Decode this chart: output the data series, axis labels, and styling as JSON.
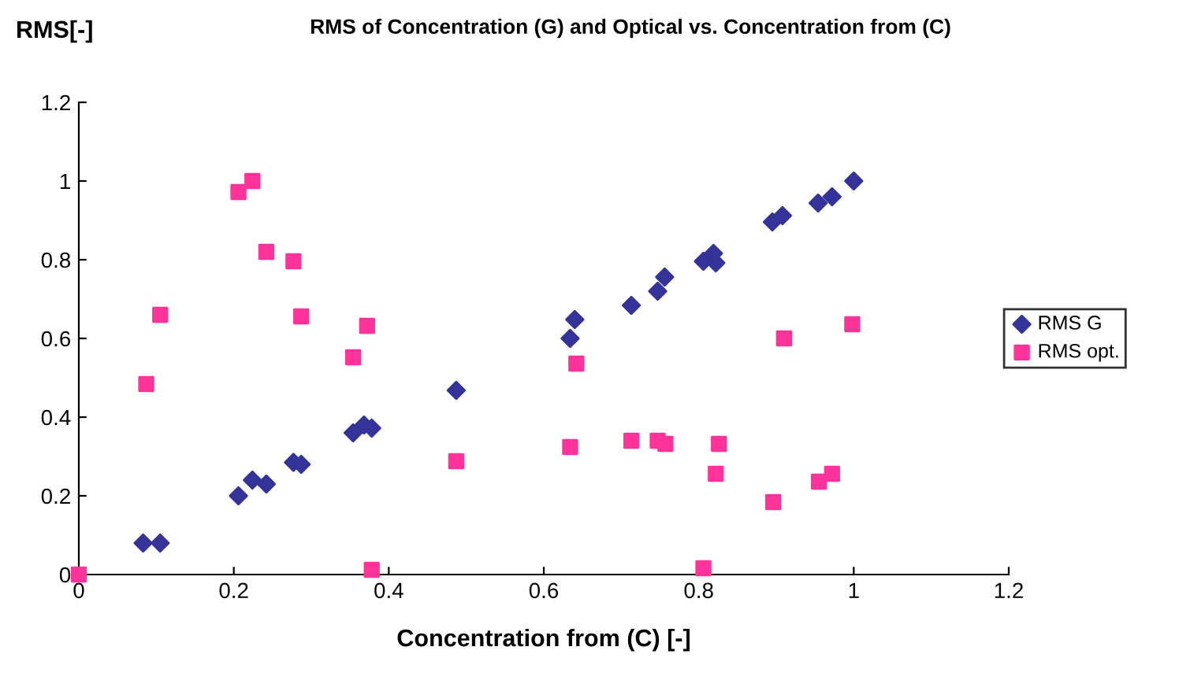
{
  "chart_data": {
    "type": "scatter",
    "title": "RMS of Concentration (G) and Optical vs. Concentration from (C)",
    "xlabel": "Concentration from (C) [-]",
    "ylabel": "RMS[-]",
    "xlim": [
      0,
      1.2
    ],
    "xticks": [
      0,
      0.2,
      0.4,
      0.6,
      0.8,
      1,
      1.2
    ],
    "ylim": [
      0,
      1.2
    ],
    "yticks": [
      0,
      0.2,
      0.4,
      0.6,
      0.8,
      1,
      1.2
    ],
    "grid": false,
    "legend": "right",
    "series": [
      {
        "name": "RMS G",
        "color": "#333399",
        "marker": "diamond",
        "x": [
          0.083,
          0.105,
          0.206,
          0.224,
          0.242,
          0.277,
          0.287,
          0.354,
          0.368,
          0.378,
          0.487,
          0.634,
          0.64,
          0.713,
          0.747,
          0.756,
          0.806,
          0.819,
          0.822,
          0.895,
          0.908,
          0.954,
          0.972,
          1.0
        ],
        "values": [
          0.08,
          0.08,
          0.2,
          0.24,
          0.23,
          0.285,
          0.28,
          0.36,
          0.38,
          0.372,
          0.468,
          0.6,
          0.648,
          0.684,
          0.72,
          0.756,
          0.796,
          0.816,
          0.792,
          0.896,
          0.912,
          0.944,
          0.96,
          1.0
        ]
      },
      {
        "name": "RMS opt.",
        "color": "#ff3399",
        "marker": "square",
        "x": [
          0,
          0.087,
          0.105,
          0.206,
          0.224,
          0.242,
          0.277,
          0.287,
          0.354,
          0.372,
          0.378,
          0.487,
          0.634,
          0.642,
          0.713,
          0.747,
          0.757,
          0.806,
          0.822,
          0.826,
          0.896,
          0.91,
          0.955,
          0.972,
          0.998
        ],
        "values": [
          0,
          0.484,
          0.66,
          0.972,
          1.0,
          0.82,
          0.796,
          0.656,
          0.552,
          0.632,
          0.012,
          0.288,
          0.324,
          0.536,
          0.34,
          0.34,
          0.332,
          0.016,
          0.256,
          0.332,
          0.184,
          0.6,
          0.236,
          0.256,
          0.636
        ]
      }
    ]
  }
}
